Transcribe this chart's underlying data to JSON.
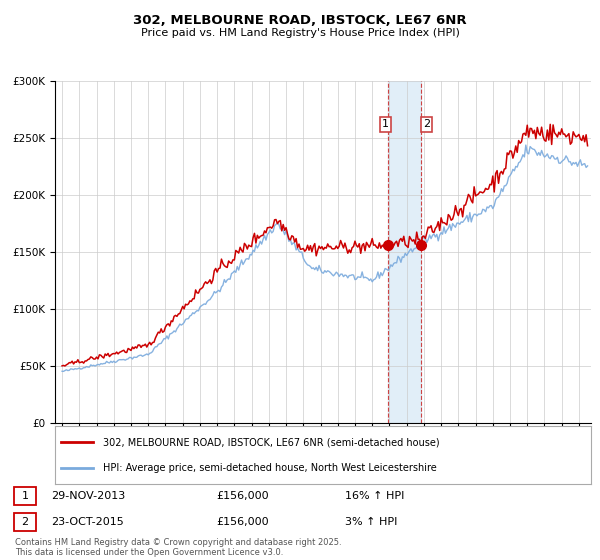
{
  "title1": "302, MELBOURNE ROAD, IBSTOCK, LE67 6NR",
  "title2": "Price paid vs. HM Land Registry's House Price Index (HPI)",
  "legend_line1": "302, MELBOURNE ROAD, IBSTOCK, LE67 6NR (semi-detached house)",
  "legend_line2": "HPI: Average price, semi-detached house, North West Leicestershire",
  "transaction1_label": "1",
  "transaction1_date": "29-NOV-2013",
  "transaction1_price": "£156,000",
  "transaction1_hpi": "16% ↑ HPI",
  "transaction2_label": "2",
  "transaction2_date": "23-OCT-2015",
  "transaction2_price": "£156,000",
  "transaction2_hpi": "3% ↑ HPI",
  "footnote": "Contains HM Land Registry data © Crown copyright and database right 2025.\nThis data is licensed under the Open Government Licence v3.0.",
  "red_color": "#cc0000",
  "blue_color": "#7aaadd",
  "marker1_x": 2013.91,
  "marker2_x": 2015.81,
  "marker1_y": 156000,
  "marker2_y": 156000,
  "shade_x1": 2013.91,
  "shade_x2": 2015.81,
  "ylim": [
    0,
    300000
  ],
  "xlim_start": 1994.6,
  "xlim_end": 2025.7
}
